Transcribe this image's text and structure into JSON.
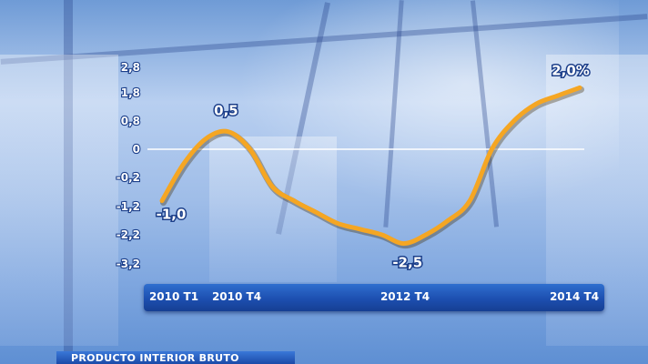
{
  "chart_data": {
    "type": "line",
    "x_tick_labels": [
      "2010 T1",
      "2010 T4",
      "2012 T4",
      "2014 T4"
    ],
    "y_tick_labels": [
      "2,8",
      "1,8",
      "0,8",
      "0",
      "-0,2",
      "-1,2",
      "-2,2",
      "-3,2"
    ],
    "series": [
      {
        "x": [
          0,
          1,
          2,
          3,
          4,
          5,
          6,
          7,
          8,
          9,
          10,
          11,
          12,
          13,
          14,
          15,
          16,
          17,
          18,
          19
        ],
        "values": [
          -1.0,
          -0.1,
          0.3,
          0.5,
          0.0,
          -0.5,
          -1.0,
          -1.4,
          -1.8,
          -2.0,
          -2.2,
          -2.5,
          -2.2,
          -1.7,
          -1.0,
          0.0,
          0.8,
          1.4,
          1.7,
          2.0
        ]
      }
    ],
    "data_labels": [
      {
        "index": 0,
        "text": "-1,0"
      },
      {
        "index": 3,
        "text": "0,5"
      },
      {
        "index": 11,
        "text": "-2,5"
      },
      {
        "index": 19,
        "text": "2,0%"
      }
    ],
    "line_color": "#f5a623",
    "grid": false
  },
  "footer": {
    "label": "PRODUCTO INTERIOR BRUTO"
  }
}
